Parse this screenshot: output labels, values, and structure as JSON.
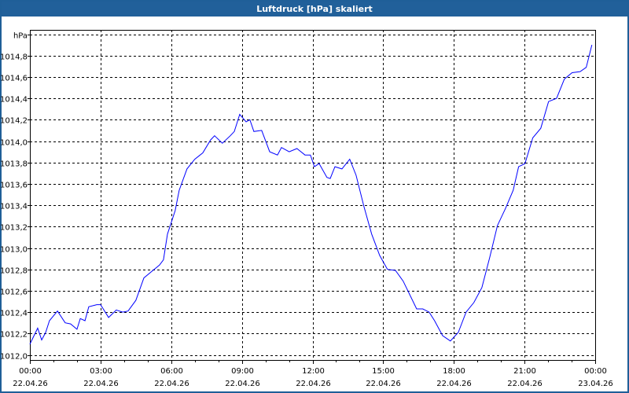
{
  "window": {
    "title": "Luftdruck [hPa] skaliert"
  },
  "colors": {
    "titlebar": "#21609a",
    "line": "#0000ff",
    "grid": "#000000"
  },
  "chart_data": {
    "type": "line",
    "title": "Luftdruck [hPa] skaliert",
    "ylabel": "hPa",
    "xlabel": "",
    "xlim": [
      0,
      24
    ],
    "ylim": [
      1012.0,
      1015.0
    ],
    "grid": true,
    "y_ticks": [
      {
        "value": 1012.0,
        "label": "1012,0"
      },
      {
        "value": 1012.2,
        "label": "1012,2"
      },
      {
        "value": 1012.4,
        "label": "1012,4"
      },
      {
        "value": 1012.6,
        "label": "1012,6"
      },
      {
        "value": 1012.8,
        "label": "1012,8"
      },
      {
        "value": 1013.0,
        "label": "1013,0"
      },
      {
        "value": 1013.2,
        "label": "1013,2"
      },
      {
        "value": 1013.4,
        "label": "1013,4"
      },
      {
        "value": 1013.6,
        "label": "1013,6"
      },
      {
        "value": 1013.8,
        "label": "1013,8"
      },
      {
        "value": 1014.0,
        "label": "1014,0"
      },
      {
        "value": 1014.2,
        "label": "1014,2"
      },
      {
        "value": 1014.4,
        "label": "1014,4"
      },
      {
        "value": 1014.6,
        "label": "1014,6"
      },
      {
        "value": 1014.8,
        "label": "1014,8"
      },
      {
        "value": 1015.0,
        "label": "hPa"
      }
    ],
    "x_ticks": [
      {
        "value": 0,
        "time": "00:00",
        "date": "22.04.26"
      },
      {
        "value": 3,
        "time": "03:00",
        "date": "22.04.26"
      },
      {
        "value": 6,
        "time": "06:00",
        "date": "22.04.26"
      },
      {
        "value": 9,
        "time": "09:00",
        "date": "22.04.26"
      },
      {
        "value": 12,
        "time": "12:00",
        "date": "22.04.26"
      },
      {
        "value": 15,
        "time": "15:00",
        "date": "22.04.26"
      },
      {
        "value": 18,
        "time": "18:00",
        "date": "22.04.26"
      },
      {
        "value": 21,
        "time": "21:00",
        "date": "22.04.26"
      },
      {
        "value": 24,
        "time": "00:00",
        "date": "23.04.26"
      }
    ],
    "series": [
      {
        "name": "Luftdruck",
        "x": [
          0,
          0.33,
          0.5,
          0.67,
          0.83,
          1.17,
          1.5,
          1.73,
          2.0,
          2.14,
          2.34,
          2.5,
          2.84,
          3.0,
          3.34,
          3.67,
          3.94,
          4.17,
          4.5,
          4.84,
          5.17,
          5.5,
          5.67,
          5.84,
          6.17,
          6.34,
          6.67,
          7.0,
          7.34,
          7.67,
          7.84,
          8.17,
          8.51,
          8.68,
          8.91,
          9.18,
          9.34,
          9.51,
          9.84,
          10.18,
          10.51,
          10.68,
          11.01,
          11.34,
          11.68,
          11.91,
          12.08,
          12.28,
          12.61,
          12.75,
          12.95,
          13.25,
          13.58,
          13.85,
          14.18,
          14.51,
          14.85,
          15.18,
          15.52,
          15.85,
          16.18,
          16.42,
          16.68,
          16.95,
          17.18,
          17.52,
          17.85,
          18.19,
          18.52,
          18.85,
          19.19,
          19.52,
          19.85,
          20.19,
          20.52,
          20.75,
          21.02,
          21.35,
          21.69,
          22.02,
          22.36,
          22.69,
          23.02,
          23.36,
          23.62,
          23.86
        ],
        "values": [
          1012.1,
          1012.25,
          1012.14,
          1012.21,
          1012.32,
          1012.41,
          1012.3,
          1012.29,
          1012.24,
          1012.34,
          1012.32,
          1012.45,
          1012.47,
          1012.47,
          1012.35,
          1012.42,
          1012.4,
          1012.41,
          1012.51,
          1012.72,
          1012.78,
          1012.84,
          1012.89,
          1013.13,
          1013.35,
          1013.54,
          1013.74,
          1013.83,
          1013.89,
          1014.01,
          1014.05,
          1013.98,
          1014.05,
          1014.09,
          1014.25,
          1014.18,
          1014.2,
          1014.09,
          1014.1,
          1013.9,
          1013.87,
          1013.94,
          1013.9,
          1013.93,
          1013.87,
          1013.87,
          1013.76,
          1013.79,
          1013.66,
          1013.65,
          1013.76,
          1013.74,
          1013.83,
          1013.68,
          1013.39,
          1013.13,
          1012.93,
          1012.8,
          1012.79,
          1012.69,
          1012.54,
          1012.43,
          1012.43,
          1012.4,
          1012.32,
          1012.18,
          1012.13,
          1012.21,
          1012.4,
          1012.49,
          1012.63,
          1012.91,
          1013.21,
          1013.37,
          1013.54,
          1013.76,
          1013.79,
          1014.03,
          1014.12,
          1014.37,
          1014.4,
          1014.58,
          1014.64,
          1014.65,
          1014.69,
          1014.9
        ]
      }
    ]
  }
}
